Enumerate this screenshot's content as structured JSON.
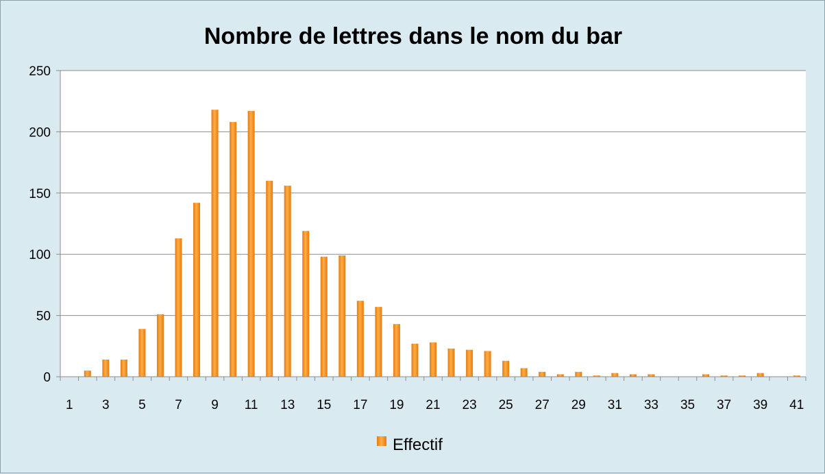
{
  "chart_data": {
    "type": "bar",
    "title": "Nombre de lettres dans le nom du bar",
    "xlabel": "",
    "ylabel": "",
    "ylim": [
      0,
      250
    ],
    "yticks": [
      0,
      50,
      100,
      150,
      200,
      250
    ],
    "grid": true,
    "legend_position": "bottom",
    "colors": {
      "bar": "#f7931e",
      "bar_light": "#ffb347",
      "bar_dark": "#e06c00",
      "plot_bg": "#ffffff",
      "frame_bg": "#daeaf1",
      "grid": "#8c8c8c"
    },
    "categories": [
      1,
      2,
      3,
      4,
      5,
      6,
      7,
      8,
      9,
      10,
      11,
      12,
      13,
      14,
      15,
      16,
      17,
      18,
      19,
      20,
      21,
      22,
      23,
      24,
      25,
      26,
      27,
      28,
      29,
      30,
      31,
      32,
      33,
      34,
      35,
      36,
      37,
      38,
      39,
      40,
      41
    ],
    "tick_labels": [
      "1",
      "3",
      "5",
      "7",
      "9",
      "11",
      "13",
      "15",
      "17",
      "19",
      "21",
      "23",
      "25",
      "27",
      "29",
      "31",
      "33",
      "35",
      "37",
      "39",
      "41"
    ],
    "series": [
      {
        "name": "Effectif",
        "values": [
          0,
          5,
          14,
          14,
          39,
          51,
          113,
          142,
          218,
          208,
          217,
          160,
          156,
          119,
          98,
          99,
          62,
          57,
          43,
          27,
          28,
          23,
          22,
          21,
          13,
          7,
          4,
          2,
          4,
          1,
          3,
          2,
          2,
          0,
          0,
          2,
          1,
          1,
          3,
          0,
          1
        ]
      }
    ]
  }
}
